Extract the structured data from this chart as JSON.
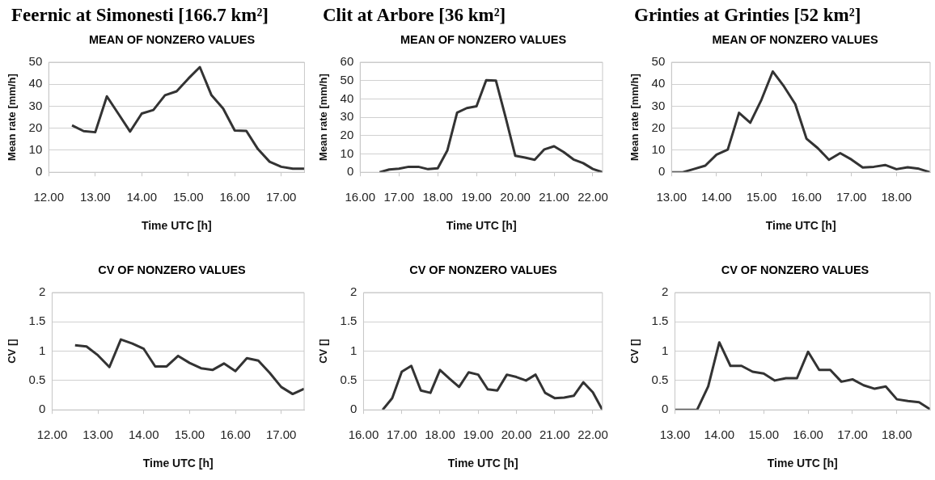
{
  "chart_data": [
    {
      "type": "line",
      "title": "Feernic at Simonesti [166.7 km²]",
      "subtitle": "MEAN OF NONZERO VALUES",
      "xlabel": "Time UTC [h]",
      "ylabel": "Mean rate [mm/h]",
      "x": [
        12.5,
        12.75,
        13,
        13.25,
        13.5,
        13.75,
        14,
        14.25,
        14.5,
        14.75,
        15,
        15.25,
        15.5,
        15.75,
        16,
        16.25,
        16.5,
        16.75,
        17,
        17.25,
        17.5
      ],
      "series": [
        {
          "color": "#333333",
          "values": [
            21.3,
            18.7,
            18.2,
            34.5,
            26.5,
            18.5,
            26.7,
            28.3,
            35,
            36.8,
            42.5,
            47.8,
            35,
            29,
            19,
            18.8,
            10.5,
            4.8,
            2.5,
            1.6,
            1.6
          ]
        }
      ],
      "xlim": [
        12,
        17.5
      ],
      "xticks": [
        {
          "value": 12,
          "label": "12.00"
        },
        {
          "value": 13,
          "label": "13.00"
        },
        {
          "value": 14,
          "label": "14.00"
        },
        {
          "value": 15,
          "label": "15.00"
        },
        {
          "value": 16,
          "label": "16.00"
        },
        {
          "value": 17,
          "label": "17.00"
        }
      ],
      "ylim": [
        0,
        50
      ],
      "yticks": [
        0,
        10,
        20,
        30,
        40,
        50
      ],
      "grid": "y",
      "legend": false,
      "marker": "none",
      "line_style": "solid"
    },
    {
      "type": "line",
      "title": "Clit at Arbore [36 km²]",
      "subtitle": "MEAN OF NONZERO VALUES",
      "xlabel": "Time UTC [h]",
      "ylabel": "Mean rate [mm/h]",
      "x": [
        16.5,
        16.75,
        17,
        17.25,
        17.5,
        17.75,
        18,
        18.25,
        18.5,
        18.75,
        19,
        19.25,
        19.5,
        19.75,
        20,
        20.25,
        20.5,
        20.75,
        21,
        21.25,
        21.5,
        21.75,
        22,
        22.25
      ],
      "series": [
        {
          "color": "#333333",
          "values": [
            0,
            1.5,
            2,
            3,
            3,
            1.7,
            2.2,
            12,
            32.5,
            35,
            36,
            50.2,
            50,
            30,
            9,
            8,
            6.8,
            12.5,
            14.2,
            11,
            7,
            5,
            1.8,
            0
          ]
        }
      ],
      "xlim": [
        16,
        22.25
      ],
      "xticks": [
        {
          "value": 16,
          "label": "16.00"
        },
        {
          "value": 17,
          "label": "17.00"
        },
        {
          "value": 18,
          "label": "18.00"
        },
        {
          "value": 19,
          "label": "19.00"
        },
        {
          "value": 20,
          "label": "20.00"
        },
        {
          "value": 21,
          "label": "21.00"
        },
        {
          "value": 22,
          "label": "22.00"
        }
      ],
      "ylim": [
        0,
        60
      ],
      "yticks": [
        0,
        10,
        20,
        30,
        40,
        50,
        60
      ],
      "grid": "y",
      "legend": false,
      "marker": "none",
      "line_style": "solid"
    },
    {
      "type": "line",
      "title": "Grinties at Grinties [52 km²]",
      "subtitle": "MEAN OF NONZERO VALUES",
      "xlabel": "Time UTC [h]",
      "ylabel": "Mean rate [mm/h]",
      "x": [
        13,
        13.25,
        13.5,
        13.75,
        14,
        14.25,
        14.5,
        14.75,
        15,
        15.25,
        15.5,
        15.75,
        16,
        16.25,
        16.5,
        16.75,
        17,
        17.25,
        17.5,
        17.75,
        18,
        18.25,
        18.5,
        18.75
      ],
      "series": [
        {
          "color": "#333333",
          "values": [
            0,
            0,
            1.5,
            3,
            8,
            10.3,
            27,
            22.5,
            33,
            45.8,
            39,
            31,
            15.3,
            11,
            5.7,
            8.7,
            5.8,
            2.2,
            2.5,
            3.3,
            1.4,
            2.3,
            1.6,
            0
          ]
        }
      ],
      "xlim": [
        13,
        18.75
      ],
      "xticks": [
        {
          "value": 13,
          "label": "13.00"
        },
        {
          "value": 14,
          "label": "14.00"
        },
        {
          "value": 15,
          "label": "15.00"
        },
        {
          "value": 16,
          "label": "16.00"
        },
        {
          "value": 17,
          "label": "17.00"
        },
        {
          "value": 18,
          "label": "18.00"
        }
      ],
      "ylim": [
        0,
        50
      ],
      "yticks": [
        0,
        10,
        20,
        30,
        40,
        50
      ],
      "grid": "y",
      "legend": false,
      "marker": "none",
      "line_style": "solid"
    },
    {
      "type": "line",
      "title": "CV OF NONZERO VALUES",
      "xlabel": "Time UTC [h]",
      "ylabel": "CV []",
      "x": [
        12.5,
        12.75,
        13,
        13.25,
        13.5,
        13.75,
        14,
        14.25,
        14.5,
        14.75,
        15,
        15.25,
        15.5,
        15.75,
        16,
        16.25,
        16.5,
        16.75,
        17,
        17.25,
        17.5
      ],
      "series": [
        {
          "color": "#333333",
          "values": [
            1.1,
            1.08,
            0.93,
            0.73,
            1.2,
            1.13,
            1.04,
            0.74,
            0.74,
            0.92,
            0.8,
            0.71,
            0.68,
            0.79,
            0.66,
            0.88,
            0.84,
            0.63,
            0.39,
            0.27,
            0.36
          ]
        }
      ],
      "xlim": [
        12,
        17.5
      ],
      "xticks": [
        {
          "value": 12,
          "label": "12.00"
        },
        {
          "value": 13,
          "label": "13.00"
        },
        {
          "value": 14,
          "label": "14.00"
        },
        {
          "value": 15,
          "label": "15.00"
        },
        {
          "value": 16,
          "label": "16.00"
        },
        {
          "value": 17,
          "label": "17.00"
        }
      ],
      "ylim": [
        0,
        2
      ],
      "yticks": [
        0,
        0.5,
        1,
        1.5,
        2
      ],
      "grid": "y",
      "legend": false,
      "marker": "none",
      "line_style": "solid"
    },
    {
      "type": "line",
      "title": "CV OF NONZERO VALUES",
      "xlabel": "Time UTC [h]",
      "ylabel": "CV []",
      "x": [
        16.5,
        16.75,
        17,
        17.25,
        17.5,
        17.75,
        18,
        18.25,
        18.5,
        18.75,
        19,
        19.25,
        19.5,
        19.75,
        20,
        20.25,
        20.5,
        20.75,
        21,
        21.25,
        21.5,
        21.75,
        22,
        22.25
      ],
      "series": [
        {
          "color": "#333333",
          "values": [
            0,
            0.2,
            0.65,
            0.75,
            0.33,
            0.29,
            0.68,
            0.53,
            0.39,
            0.64,
            0.6,
            0.35,
            0.33,
            0.6,
            0.56,
            0.5,
            0.6,
            0.29,
            0.2,
            0.21,
            0.24,
            0.47,
            0.3,
            0
          ]
        }
      ],
      "xlim": [
        16,
        22.25
      ],
      "xticks": [
        {
          "value": 16,
          "label": "16.00"
        },
        {
          "value": 17,
          "label": "17.00"
        },
        {
          "value": 18,
          "label": "18.00"
        },
        {
          "value": 19,
          "label": "19.00"
        },
        {
          "value": 20,
          "label": "20.00"
        },
        {
          "value": 21,
          "label": "21.00"
        },
        {
          "value": 22,
          "label": "22.00"
        }
      ],
      "ylim": [
        0,
        2
      ],
      "yticks": [
        0,
        0.5,
        1,
        1.5,
        2
      ],
      "grid": "y",
      "legend": false,
      "marker": "none",
      "line_style": "solid"
    },
    {
      "type": "line",
      "title": "CV OF NONZERO VALUES",
      "xlabel": "Time UTC [h]",
      "ylabel": "CV []",
      "x": [
        13,
        13.25,
        13.5,
        13.75,
        14,
        14.25,
        14.5,
        14.75,
        15,
        15.25,
        15.5,
        15.75,
        16,
        16.25,
        16.5,
        16.75,
        17,
        17.25,
        17.5,
        17.75,
        18,
        18.25,
        18.5,
        18.75
      ],
      "series": [
        {
          "color": "#333333",
          "values": [
            0,
            0,
            0,
            0.4,
            1.15,
            0.75,
            0.75,
            0.65,
            0.62,
            0.5,
            0.54,
            0.54,
            0.99,
            0.68,
            0.68,
            0.48,
            0.52,
            0.42,
            0.36,
            0.4,
            0.18,
            0.15,
            0.13,
            0.01
          ]
        }
      ],
      "xlim": [
        13,
        18.75
      ],
      "xticks": [
        {
          "value": 13,
          "label": "13.00"
        },
        {
          "value": 14,
          "label": "14.00"
        },
        {
          "value": 15,
          "label": "15.00"
        },
        {
          "value": 16,
          "label": "16.00"
        },
        {
          "value": 17,
          "label": "17.00"
        },
        {
          "value": 18,
          "label": "18.00"
        }
      ],
      "ylim": [
        0,
        2
      ],
      "yticks": [
        0,
        0.5,
        1,
        1.5,
        2
      ],
      "grid": "y",
      "legend": false,
      "marker": "none",
      "line_style": "solid"
    }
  ]
}
